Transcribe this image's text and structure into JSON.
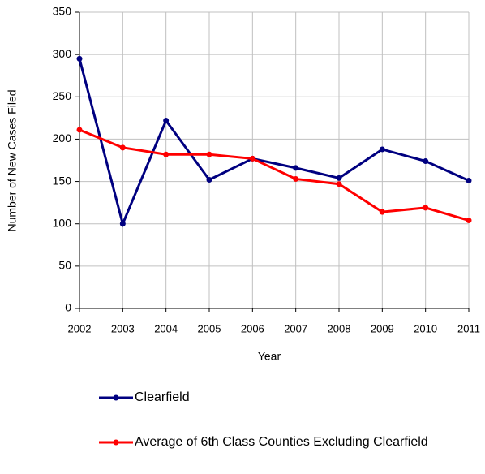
{
  "chart_data": {
    "type": "line",
    "categories": [
      "2002",
      "2003",
      "2004",
      "2005",
      "2006",
      "2007",
      "2008",
      "2009",
      "2010",
      "2011"
    ],
    "x_label": "Year",
    "y_label": "Number of New Cases Filed",
    "ylim": [
      0,
      350
    ],
    "yticks": [
      0,
      50,
      100,
      150,
      200,
      250,
      300,
      350
    ],
    "grid": true,
    "series": [
      {
        "name": "Clearfield",
        "color": "#000080",
        "values": [
          295,
          100,
          222,
          152,
          177,
          166,
          154,
          188,
          174,
          151
        ]
      },
      {
        "name": "Average of 6th Class Counties Excluding Clearfield",
        "color": "#ff0000",
        "values": [
          211,
          190,
          182,
          182,
          177,
          153,
          147,
          114,
          119,
          104
        ]
      }
    ]
  }
}
